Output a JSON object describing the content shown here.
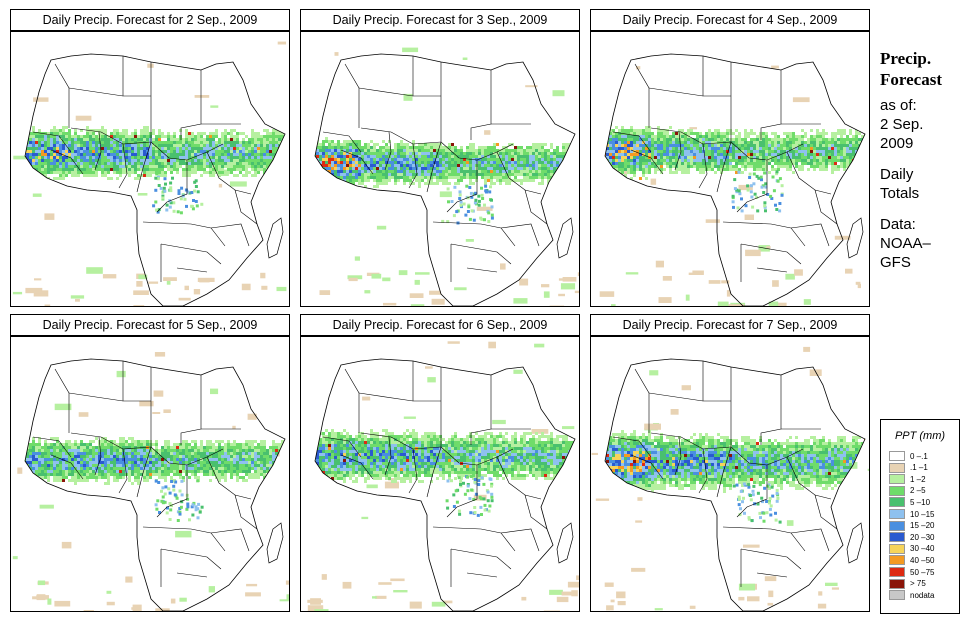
{
  "panels": [
    {
      "title": "Daily Precip. Forecast for  2 Sep., 2009"
    },
    {
      "title": "Daily Precip. Forecast for  3 Sep., 2009"
    },
    {
      "title": "Daily Precip. Forecast for  4 Sep., 2009"
    },
    {
      "title": "Daily Precip. Forecast for  5 Sep., 2009"
    },
    {
      "title": "Daily Precip. Forecast for  6 Sep., 2009"
    },
    {
      "title": "Daily Precip. Forecast for  7 Sep., 2009"
    }
  ],
  "side": {
    "title_line1": "Precip.",
    "title_line2": "Forecast",
    "asof_label": "as of:",
    "asof_date_line1": "2 Sep.",
    "asof_date_line2": "2009",
    "totals_line1": "Daily",
    "totals_line2": "Totals",
    "data_label": "Data:",
    "source_line1": "NOAA–",
    "source_line2": "GFS"
  },
  "legend": {
    "title": "PPT (mm)",
    "items": [
      {
        "label": "0 –.1",
        "color": "#ffffff"
      },
      {
        "label": ".1 –1",
        "color": "#e8d3b4"
      },
      {
        "label": "1 –2",
        "color": "#b6f0a0"
      },
      {
        "label": "2 –5",
        "color": "#6fdc6a"
      },
      {
        "label": "5 –10",
        "color": "#49c06e"
      },
      {
        "label": "10 –15",
        "color": "#8ec1ef"
      },
      {
        "label": "15 –20",
        "color": "#4a8fe0"
      },
      {
        "label": "20 –30",
        "color": "#2a5ad0"
      },
      {
        "label": "30 –40",
        "color": "#f6d45a"
      },
      {
        "label": "40 –50",
        "color": "#f49a22"
      },
      {
        "label": "50 –75",
        "color": "#dd2a12"
      },
      {
        "label": "> 75",
        "color": "#8a1408"
      },
      {
        "label": "nodata",
        "color": "#c8c8c8"
      }
    ]
  }
}
